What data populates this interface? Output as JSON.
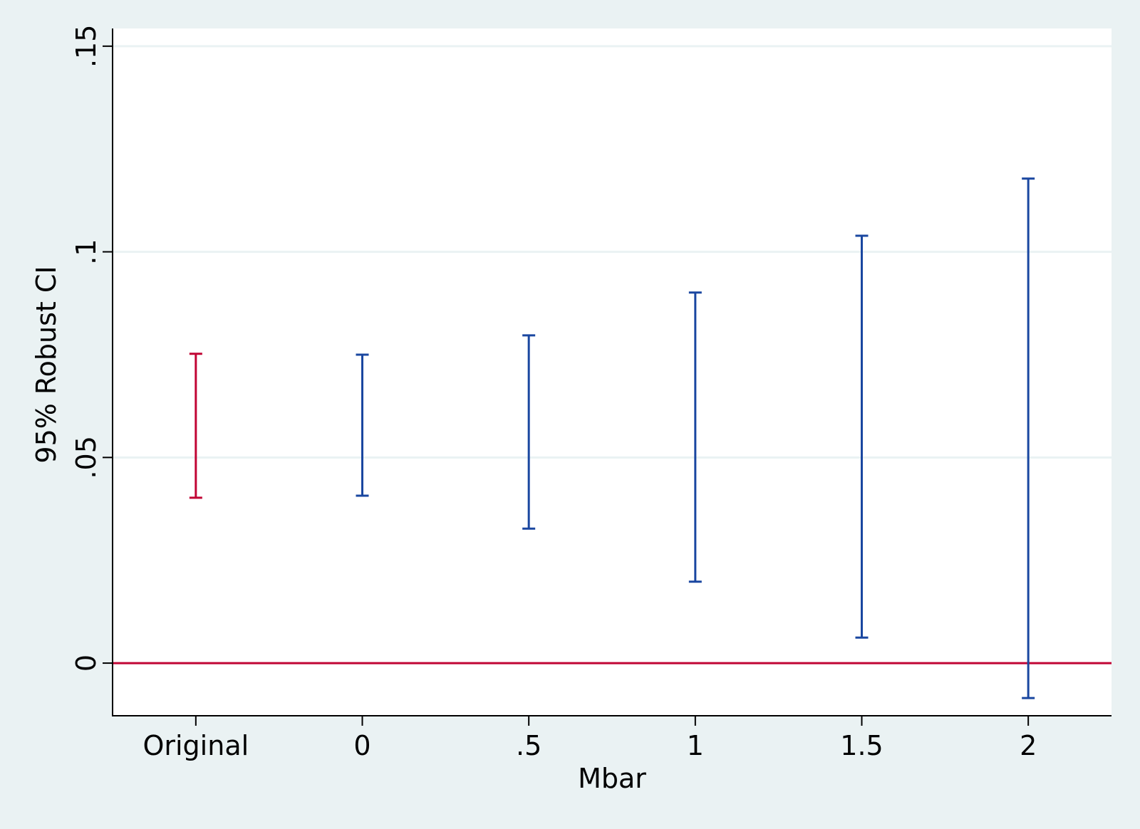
{
  "chart_data": {
    "type": "errorbar",
    "title": "",
    "xlabel": "Mbar",
    "ylabel": "95% Robust CI",
    "categories": [
      "Original",
      "0",
      ".5",
      "1",
      "1.5",
      "2"
    ],
    "intervals": [
      {
        "category": "Original",
        "lower": 0.0402,
        "upper": 0.0752
      },
      {
        "category": "0",
        "lower": 0.0407,
        "upper": 0.075
      },
      {
        "category": ".5",
        "lower": 0.0327,
        "upper": 0.0797
      },
      {
        "category": "1",
        "lower": 0.0198,
        "upper": 0.0901
      },
      {
        "category": "1.5",
        "lower": 0.0062,
        "upper": 0.1039
      },
      {
        "category": "2",
        "lower": -0.0085,
        "upper": 0.1178
      }
    ],
    "y_ticks": [
      0,
      0.05,
      0.1,
      0.15
    ],
    "y_tick_labels": [
      "0",
      ".05",
      ".1",
      ".15"
    ],
    "ylim": [
      -0.0128,
      0.1543
    ],
    "x_index_range": [
      -0.5,
      5.5
    ],
    "reference_line": {
      "y": 0,
      "color": "#c10534"
    },
    "gridlines": "horizontal at y ticks",
    "colors": {
      "original": "#c10534",
      "sensitivity": "#1a47a0",
      "background": "#eaf2f3",
      "plot_area": "#ffffff",
      "grid": "#eaf2f3"
    }
  }
}
